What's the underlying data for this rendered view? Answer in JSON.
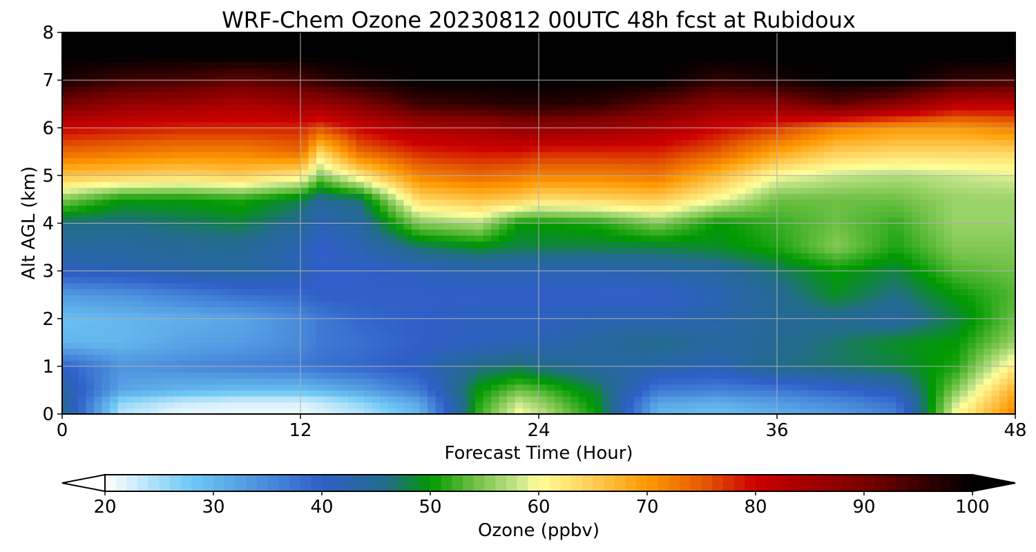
{
  "chart_data": {
    "type": "heatmap",
    "title": "WRF-Chem Ozone  20230812 00UTC 48h fcst at Rubidoux",
    "xlabel": "Forecast Time (Hour)",
    "ylabel": "Alt AGL (km)",
    "xlim": [
      0,
      48
    ],
    "ylim": [
      0,
      8
    ],
    "x_ticks": [
      "0",
      "12",
      "24",
      "36",
      "48"
    ],
    "y_ticks": [
      "0",
      "1",
      "2",
      "3",
      "4",
      "5",
      "6",
      "7",
      "8"
    ],
    "grid": true,
    "x_hours": [
      0,
      3,
      6,
      9,
      12,
      13,
      15,
      18,
      21,
      23,
      24,
      27,
      30,
      33,
      36,
      39,
      42,
      45,
      48
    ],
    "y_km": [
      0,
      0.25,
      0.5,
      1,
      1.5,
      2,
      2.5,
      3,
      3.5,
      4,
      4.5,
      5,
      5.5,
      6,
      6.5,
      7,
      7.5,
      8
    ],
    "ozone_ppbv": [
      [
        46,
        24,
        21,
        21,
        21,
        22,
        24,
        30,
        52,
        60,
        58,
        50,
        30,
        29,
        31,
        33,
        36,
        60,
        72
      ],
      [
        45,
        26,
        23,
        22,
        22,
        23,
        26,
        32,
        51,
        58,
        56,
        49,
        32,
        31,
        33,
        35,
        38,
        58,
        70
      ],
      [
        44,
        32,
        30,
        29,
        29,
        30,
        32,
        37,
        50,
        54,
        53,
        48,
        37,
        36,
        37,
        39,
        42,
        55,
        68
      ],
      [
        40,
        34,
        35,
        36,
        37,
        38,
        39,
        41,
        46,
        47,
        46,
        44,
        43,
        42,
        46,
        47,
        48,
        51,
        62
      ],
      [
        30,
        30,
        32,
        33,
        35,
        37,
        38,
        40,
        41,
        42,
        42,
        44,
        46,
        44,
        45,
        47,
        49,
        50,
        56
      ],
      [
        29,
        30,
        31,
        32,
        35,
        37,
        39,
        40,
        41,
        41,
        41,
        42,
        42,
        43,
        45,
        45,
        44,
        48,
        54
      ],
      [
        33,
        34,
        36,
        38,
        39,
        40,
        40,
        40,
        40,
        40,
        40,
        40,
        40,
        42,
        45,
        49,
        46,
        50,
        53
      ],
      [
        41,
        42,
        43,
        44,
        42,
        40,
        40,
        41,
        42,
        42,
        42,
        42,
        43,
        44,
        47,
        50,
        48,
        53,
        54
      ],
      [
        44,
        44,
        45,
        45,
        42,
        40,
        42,
        47,
        49,
        48,
        48,
        48,
        48,
        49,
        51,
        55,
        51,
        55,
        55
      ],
      [
        46,
        46,
        47,
        48,
        45,
        42,
        44,
        55,
        57,
        50,
        50,
        51,
        55,
        50,
        52,
        54,
        52,
        56,
        56
      ],
      [
        55,
        50,
        50,
        51,
        48,
        45,
        47,
        64,
        66,
        65,
        63,
        64,
        65,
        60,
        54,
        54,
        54,
        56,
        56
      ],
      [
        66,
        65,
        64,
        65,
        62,
        55,
        62,
        72,
        74,
        73,
        72,
        72,
        73,
        67,
        60,
        58,
        57,
        58,
        59
      ],
      [
        74,
        73,
        72,
        72,
        74,
        64,
        74,
        78,
        79,
        79,
        78,
        78,
        78,
        75,
        69,
        65,
        64,
        64,
        64
      ],
      [
        80,
        79,
        78,
        78,
        78,
        76,
        80,
        84,
        85,
        87,
        87,
        86,
        84,
        80,
        77,
        72,
        70,
        70,
        72
      ],
      [
        90,
        87,
        86,
        84,
        86,
        86,
        89,
        95,
        96,
        97,
        97,
        96,
        92,
        88,
        88,
        92,
        88,
        82,
        82
      ],
      [
        98,
        95,
        94,
        92,
        94,
        96,
        98,
        100,
        100,
        100,
        100,
        100,
        100,
        96,
        98,
        100,
        100,
        96,
        95
      ],
      [
        100,
        100,
        100,
        100,
        100,
        100,
        100,
        100,
        100,
        100,
        100,
        100,
        100,
        100,
        100,
        100,
        100,
        100,
        100
      ],
      [
        100,
        100,
        100,
        100,
        100,
        100,
        100,
        100,
        100,
        100,
        100,
        100,
        100,
        100,
        100,
        100,
        100,
        100,
        100
      ]
    ],
    "colorbar": {
      "label": "Ozone  (ppbv)",
      "range": [
        20,
        100
      ],
      "ticks": [
        "20",
        "30",
        "40",
        "50",
        "60",
        "70",
        "80",
        "90",
        "100"
      ],
      "extend": "both",
      "placement": "bottom",
      "stops": [
        {
          "v": 20,
          "c": "#ffffff"
        },
        {
          "v": 28,
          "c": "#6ec8f5"
        },
        {
          "v": 40,
          "c": "#2f5fc8"
        },
        {
          "v": 46,
          "c": "#226b8a"
        },
        {
          "v": 50,
          "c": "#009900"
        },
        {
          "v": 54,
          "c": "#6cc043"
        },
        {
          "v": 58,
          "c": "#c5e58a"
        },
        {
          "v": 60,
          "c": "#ffff99"
        },
        {
          "v": 65,
          "c": "#ffcc55"
        },
        {
          "v": 70,
          "c": "#ff9900"
        },
        {
          "v": 75,
          "c": "#e65c00"
        },
        {
          "v": 80,
          "c": "#cc0000"
        },
        {
          "v": 90,
          "c": "#7a0000"
        },
        {
          "v": 100,
          "c": "#000000"
        }
      ]
    }
  }
}
